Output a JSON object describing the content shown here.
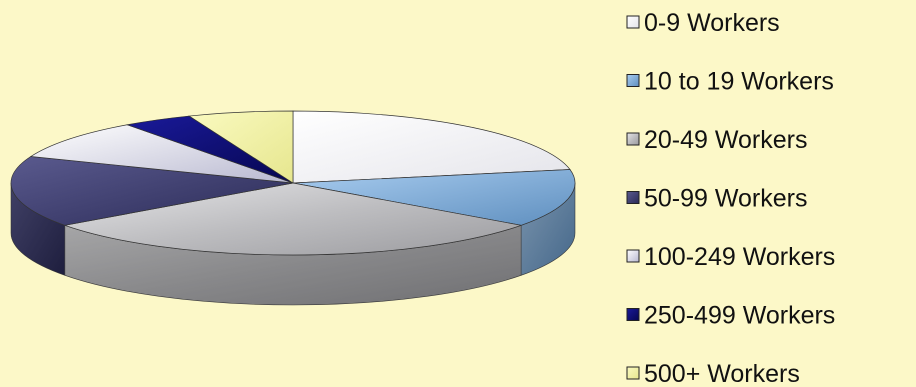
{
  "chart_data": {
    "type": "pie",
    "style": "3d",
    "title": "",
    "legend_position": "right",
    "categories": [
      "0-9 Workers",
      "10 to 19 Workers",
      "20-49 Workers",
      "50-99 Workers",
      "100-249 Workers",
      "250-499 Workers",
      "500+ Workers"
    ],
    "values": [
      22,
      13,
      30,
      16,
      9,
      4,
      6
    ],
    "colors": [
      "#f4f4f7",
      "#7aa6d2",
      "#b9b9bc",
      "#3a3a6c",
      "#dcdcea",
      "#0c0c78",
      "#f5f5a8"
    ]
  }
}
